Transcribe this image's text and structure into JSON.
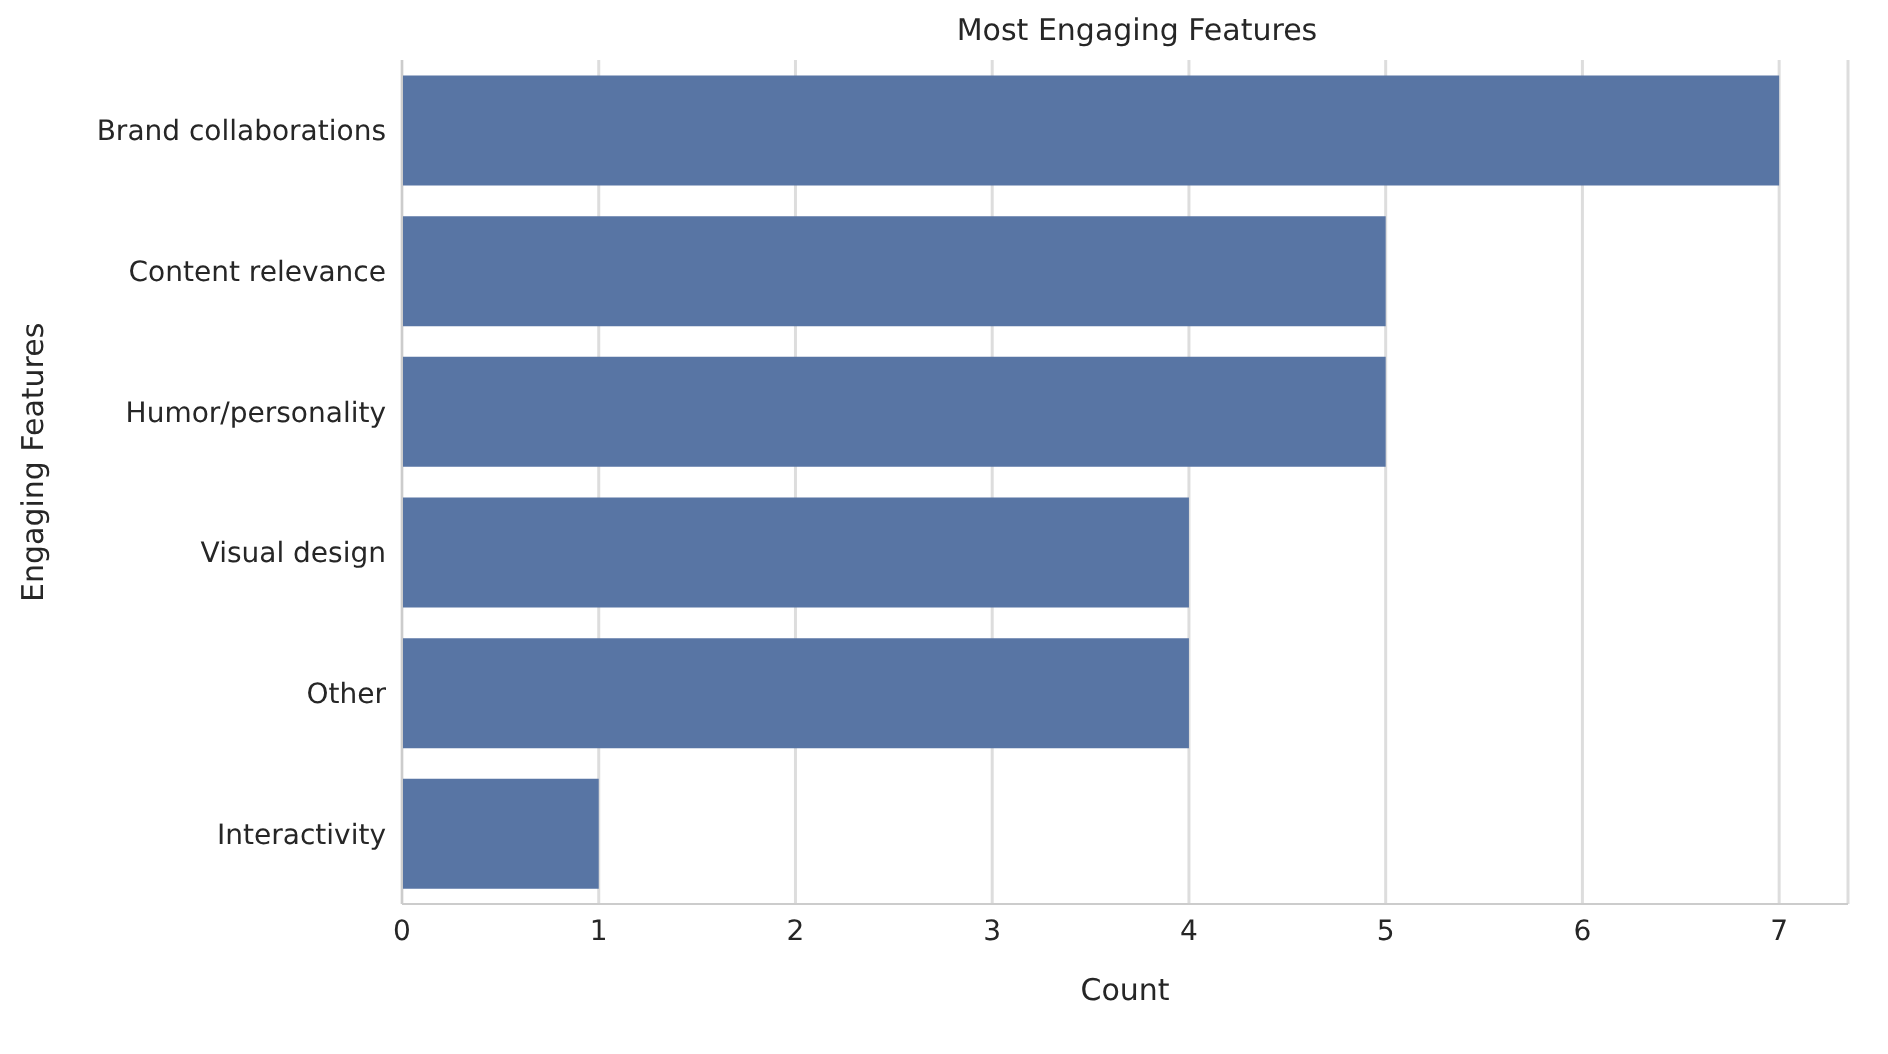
{
  "chart_data": {
    "type": "bar",
    "orientation": "horizontal",
    "title": "Most Engaging Features",
    "xlabel": "Count",
    "ylabel": "Engaging Features",
    "categories": [
      "Brand collaborations",
      "Content relevance",
      "Humor/personality",
      "Visual design",
      "Other",
      "Interactivity"
    ],
    "values": [
      7,
      5,
      5,
      4,
      4,
      1
    ],
    "color": "#5875a4",
    "xlim": [
      0,
      7.35
    ],
    "xticks": [
      0,
      1,
      2,
      3,
      4,
      5,
      6,
      7
    ],
    "grid": "x"
  }
}
